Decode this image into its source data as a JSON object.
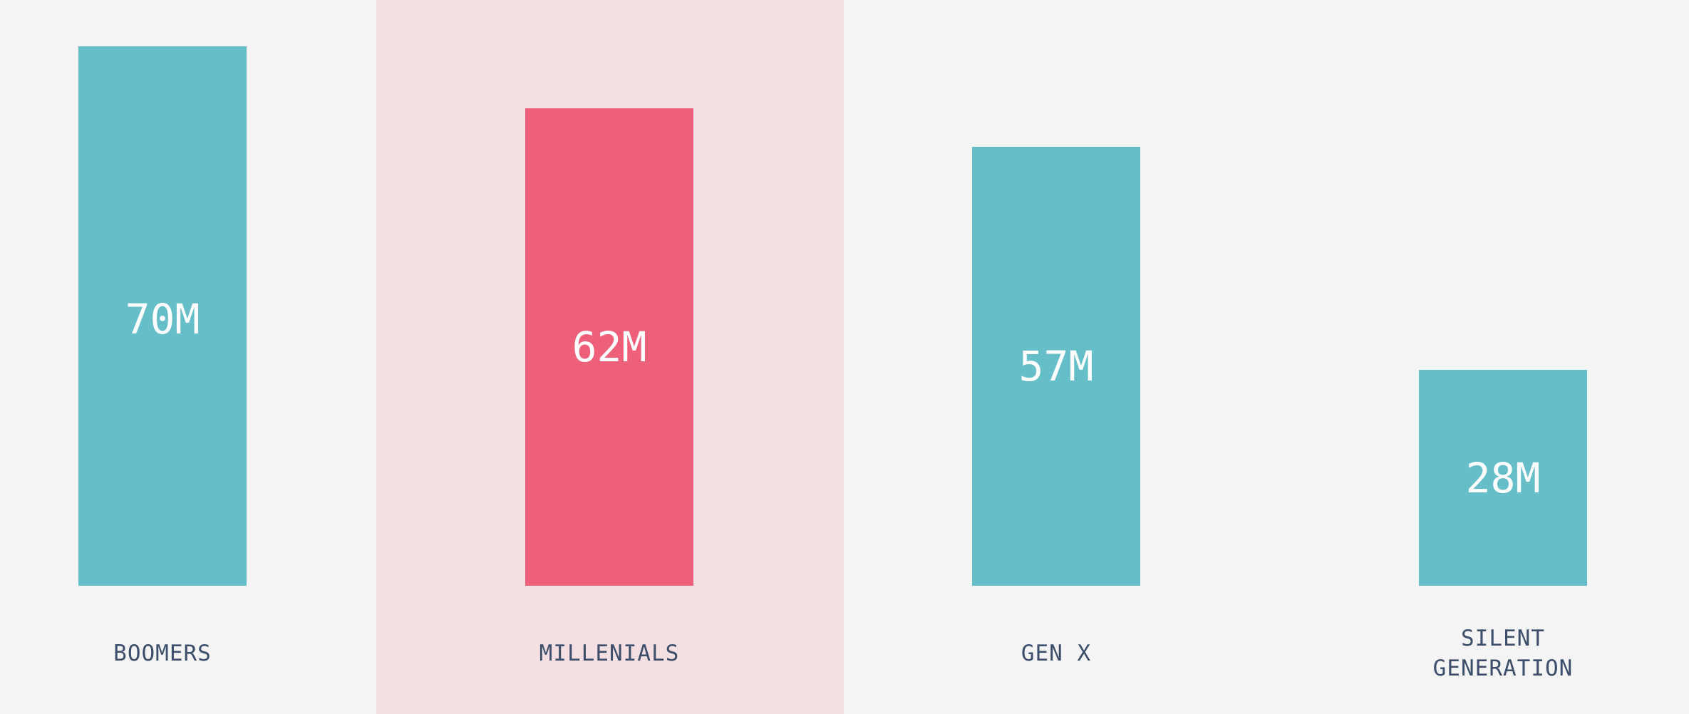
{
  "chart_data": {
    "type": "bar",
    "categories": [
      "BOOMERS",
      "MILLENIALS",
      "GEN X",
      "SILENT\nGENERATION"
    ],
    "values": [
      70,
      62,
      57,
      28
    ],
    "value_labels": [
      "70M",
      "62M",
      "57M",
      "28M"
    ],
    "unit": "M",
    "highlighted_category": "MILLENIALS",
    "ylim": [
      0,
      70
    ],
    "grid": false,
    "legend": "none",
    "title": "",
    "xlabel": "",
    "ylabel": ""
  },
  "colors": {
    "background": "#f4f4f4",
    "bar": "#65bec8",
    "bar_highlight": "#ee6079",
    "highlight_band": "#f4dfe2",
    "value_text": "#ffffff",
    "category_text": "#3d4e6b"
  }
}
